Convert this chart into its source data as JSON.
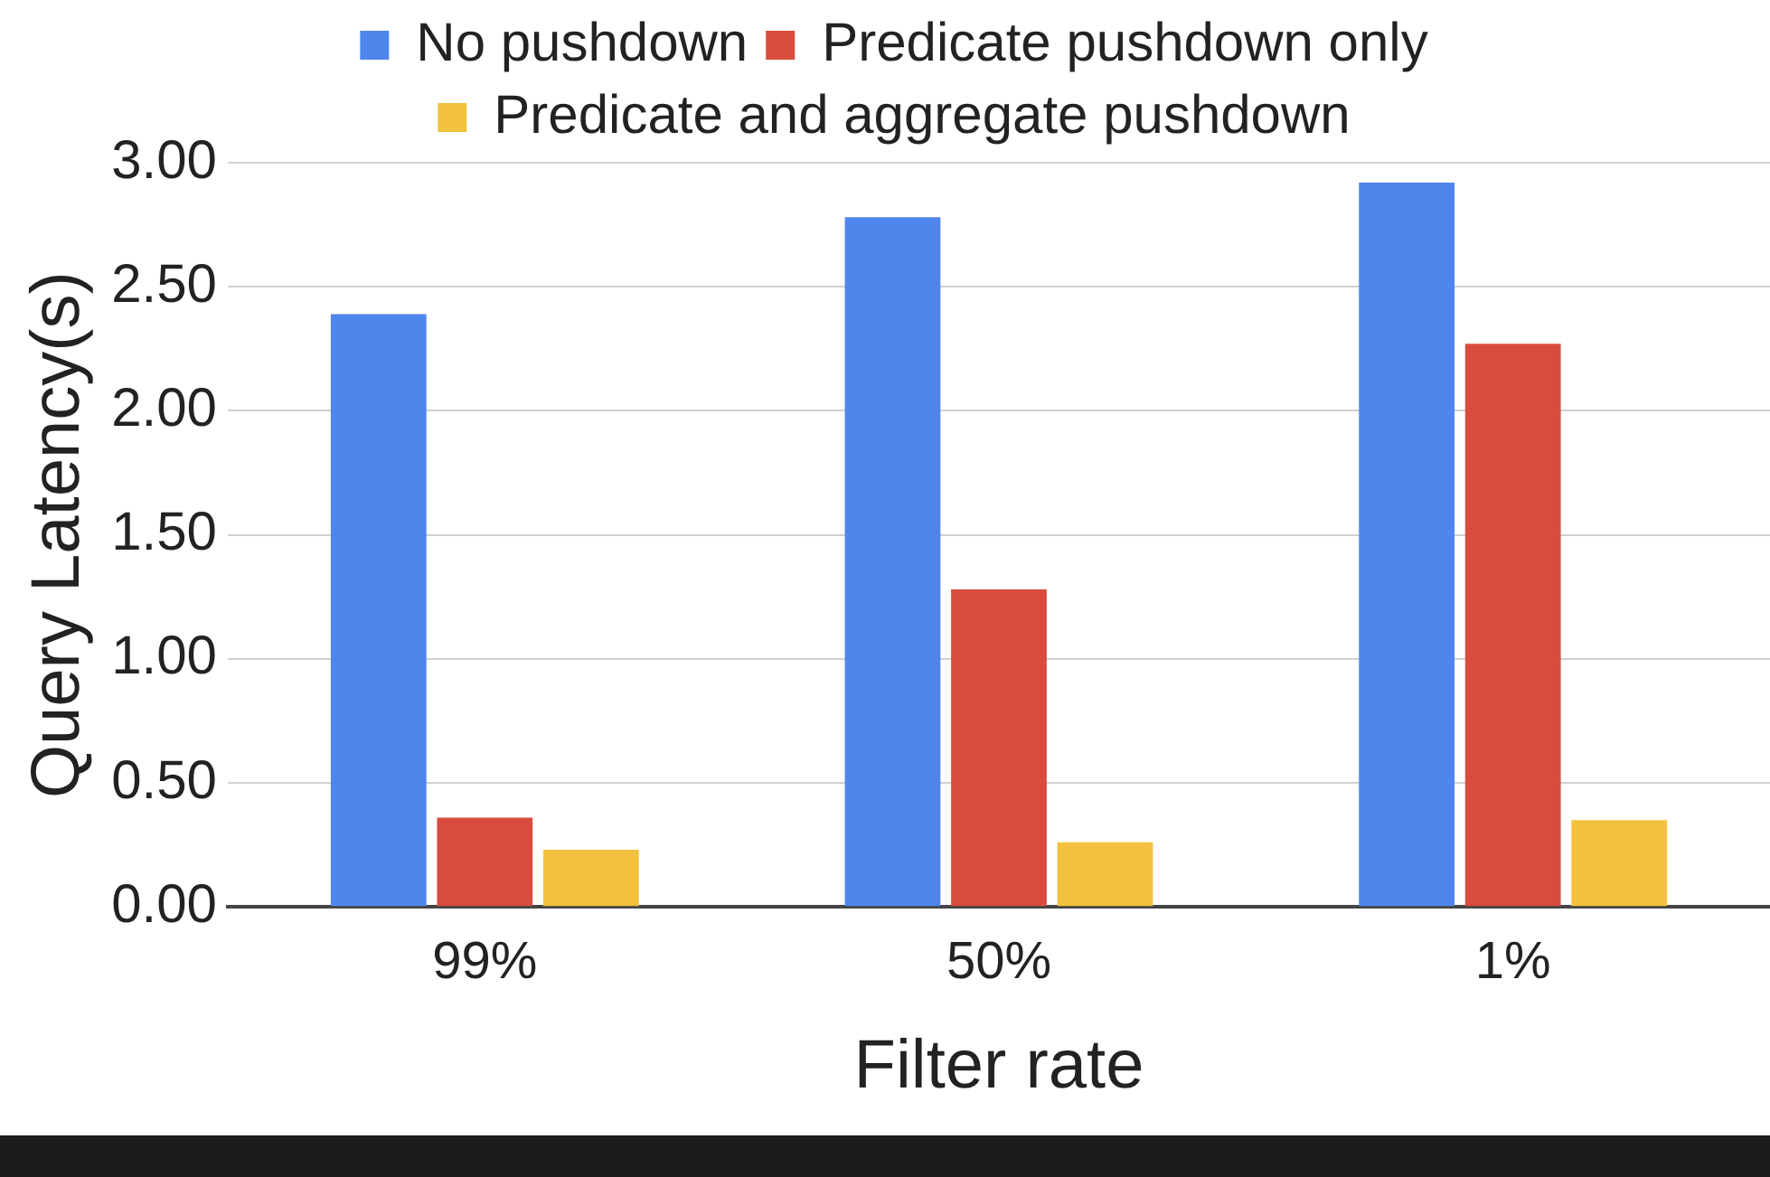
{
  "chart_data": {
    "type": "bar",
    "xlabel": "Filter rate",
    "ylabel": "Query Latency(s)",
    "categories": [
      "99%",
      "50%",
      "1%"
    ],
    "series": [
      {
        "name": "No pushdown",
        "color": "#4f86ec",
        "values": [
          2.39,
          2.78,
          2.92
        ]
      },
      {
        "name": "Predicate pushdown only",
        "color": "#d94c3d",
        "values": [
          0.36,
          1.28,
          2.27
        ]
      },
      {
        "name": "Predicate and aggregate pushdown",
        "color": "#f2c23e",
        "values": [
          0.23,
          0.26,
          0.35
        ]
      }
    ],
    "ylim": [
      0,
      3
    ],
    "yticks": [
      {
        "value": 0,
        "label": "0.00"
      },
      {
        "value": 0.5,
        "label": "0.50"
      },
      {
        "value": 1,
        "label": "1.00"
      },
      {
        "value": 1.5,
        "label": "1.50"
      },
      {
        "value": 2,
        "label": "2.00"
      },
      {
        "value": 2.5,
        "label": "2.50"
      },
      {
        "value": 3,
        "label": "3.00"
      }
    ],
    "grid": "y",
    "legend": "top"
  }
}
